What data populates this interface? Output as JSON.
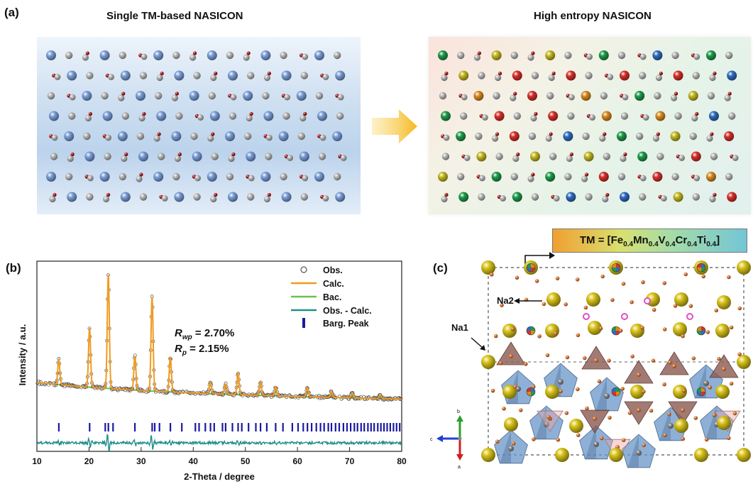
{
  "panel_a": {
    "label": "(a)",
    "left_title": "Single TM-based NASICON",
    "right_title": "High entropy NASICON",
    "colors": {
      "tm_single": "#7b9fd8",
      "grey_atom": "#b8b8b8",
      "oxygen": "#b01818",
      "fe": "#d8302a",
      "mn": "#2f6cc0",
      "v": "#1f9a4a",
      "cr": "#d88a20",
      "ti": "#c4b820",
      "arrow": "#f5b820"
    }
  },
  "panel_b": {
    "label": "(b)",
    "legend": [
      "Obs.",
      "Calc.",
      "Bac.",
      "Obs. - Calc.",
      "Barg. Peak"
    ],
    "rwp": {
      "sym": "R",
      "sub": "wp",
      "value": " = 2.70%"
    },
    "rp": {
      "sym": "R",
      "sub": "p",
      "value": " = 2.15%"
    }
  },
  "panel_c": {
    "label": "(c)",
    "tm_formula": {
      "prefix": "TM = [Fe",
      "fe": "0.4",
      "mn_pre": "Mn",
      "mn": "0.4",
      "v_pre": "V",
      "v": "0.4",
      "cr_pre": "Cr",
      "cr": "0.4",
      "ti_pre": "Ti",
      "ti": "0.4",
      "suffix": "]"
    },
    "na2": "Na2",
    "na1": "Na1",
    "axis_b": "b",
    "axis_c": "c",
    "axis_a": "a"
  },
  "chart_data": {
    "type": "line",
    "xlabel": "2-Theta / degree",
    "ylabel": "Intensity / a.u.",
    "xlim": [
      10,
      80
    ],
    "xticks": [
      10,
      20,
      30,
      40,
      50,
      60,
      70,
      80
    ],
    "series": [
      {
        "name": "Obs.",
        "color": "#555555"
      },
      {
        "name": "Calc.",
        "color": "#f29a1f"
      },
      {
        "name": "Bac.",
        "color": "#6ac24a"
      },
      {
        "name": "Obs. - Calc.",
        "color": "#1f8f8a"
      },
      {
        "name": "Barg. Peak",
        "color": "#1a1aa0"
      }
    ],
    "peaks": [
      {
        "x": 14.2,
        "h": 0.22
      },
      {
        "x": 20.1,
        "h": 0.52
      },
      {
        "x": 23.7,
        "h": 1.0
      },
      {
        "x": 28.8,
        "h": 0.3
      },
      {
        "x": 32.1,
        "h": 0.83
      },
      {
        "x": 35.6,
        "h": 0.31
      },
      {
        "x": 43.3,
        "h": 0.1
      },
      {
        "x": 46.2,
        "h": 0.09
      },
      {
        "x": 48.6,
        "h": 0.19
      },
      {
        "x": 52.9,
        "h": 0.12
      },
      {
        "x": 55.8,
        "h": 0.08
      },
      {
        "x": 61.9,
        "h": 0.08
      },
      {
        "x": 66.5,
        "h": 0.05
      },
      {
        "x": 70.5,
        "h": 0.04
      },
      {
        "x": 75.9,
        "h": 0.03
      }
    ],
    "bragg_ticks": [
      14.2,
      20.1,
      23.1,
      23.7,
      24.6,
      28.8,
      32.1,
      32.6,
      33.5,
      35.6,
      37.8,
      40.4,
      41.1,
      42.3,
      43.3,
      44.0,
      45.6,
      46.2,
      47.5,
      48.6,
      49.3,
      50.6,
      52.0,
      52.9,
      54.1,
      55.8,
      57.2,
      59.0,
      60.1,
      61.1,
      61.9,
      62.7,
      63.6,
      64.4,
      65.1,
      65.9,
      66.5,
      67.3,
      68.0,
      68.8,
      69.5,
      70.2,
      70.9,
      71.5,
      72.2,
      72.8,
      73.5,
      74.1,
      74.7,
      75.4,
      76.0,
      76.6,
      77.2,
      77.8,
      78.4,
      79.0,
      79.6
    ]
  }
}
